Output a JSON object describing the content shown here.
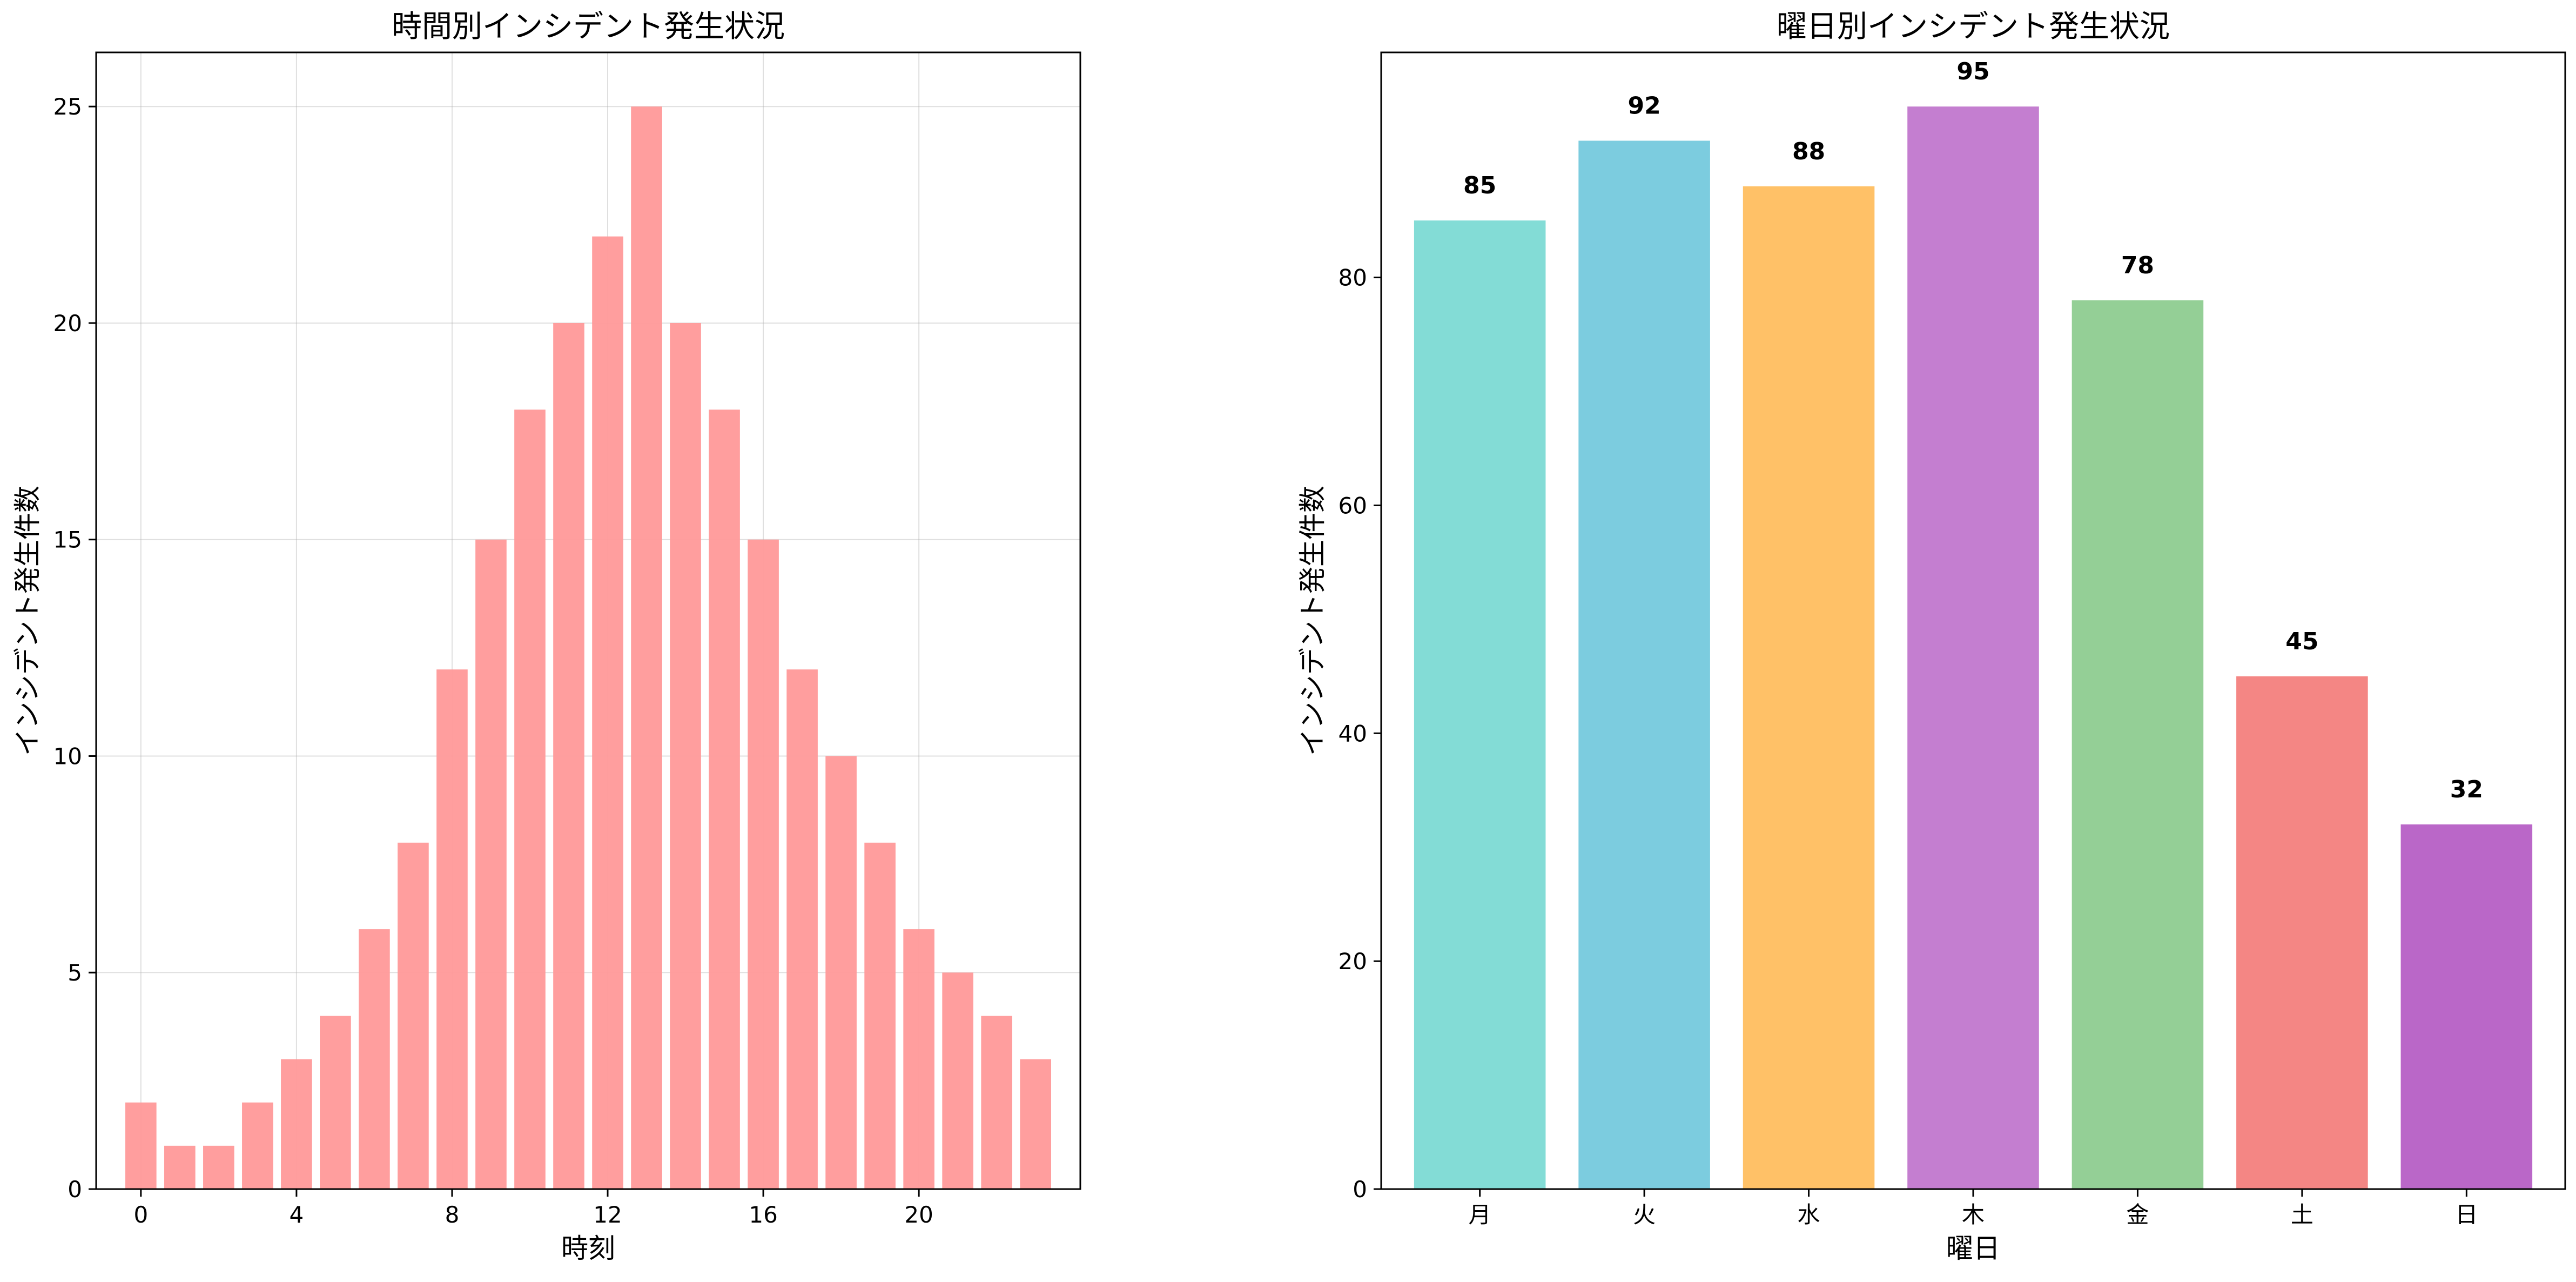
{
  "chart_data": [
    {
      "type": "bar",
      "title": "時間別インシデント発生状況",
      "xlabel": "時刻",
      "ylabel": "インシデント発生件数",
      "x": [
        0,
        1,
        2,
        3,
        4,
        5,
        6,
        7,
        8,
        9,
        10,
        11,
        12,
        13,
        14,
        15,
        16,
        17,
        18,
        19,
        20,
        21,
        22,
        23
      ],
      "values": [
        2,
        1,
        1,
        2,
        3,
        4,
        6,
        8,
        12,
        15,
        18,
        20,
        22,
        25,
        20,
        18,
        15,
        12,
        10,
        8,
        6,
        5,
        4,
        3
      ],
      "xticks": [
        0,
        4,
        8,
        12,
        16,
        20
      ],
      "yticks": [
        0,
        5,
        10,
        15,
        20,
        25
      ],
      "xlim": [
        -1.15,
        24.15
      ],
      "ylim": [
        0,
        26.25
      ],
      "grid": true,
      "color": "#FF9999"
    },
    {
      "type": "bar",
      "title": "曜日別インシデント発生状況",
      "xlabel": "曜日",
      "ylabel": "インシデント発生件数",
      "categories": [
        "月",
        "火",
        "水",
        "木",
        "金",
        "土",
        "日"
      ],
      "values": [
        85,
        92,
        88,
        95,
        78,
        45,
        32
      ],
      "data_labels": [
        "85",
        "92",
        "88",
        "95",
        "78",
        "45",
        "32"
      ],
      "yticks": [
        0,
        20,
        40,
        60,
        80
      ],
      "ylim": [
        0,
        99.75
      ],
      "grid": false,
      "colors": [
        "#4ECDC4",
        "#45B7D1",
        "#FFA726",
        "#AB47BC",
        "#66BB6A",
        "#EF5350",
        "#9C27B0"
      ],
      "alpha": 0.7
    }
  ]
}
